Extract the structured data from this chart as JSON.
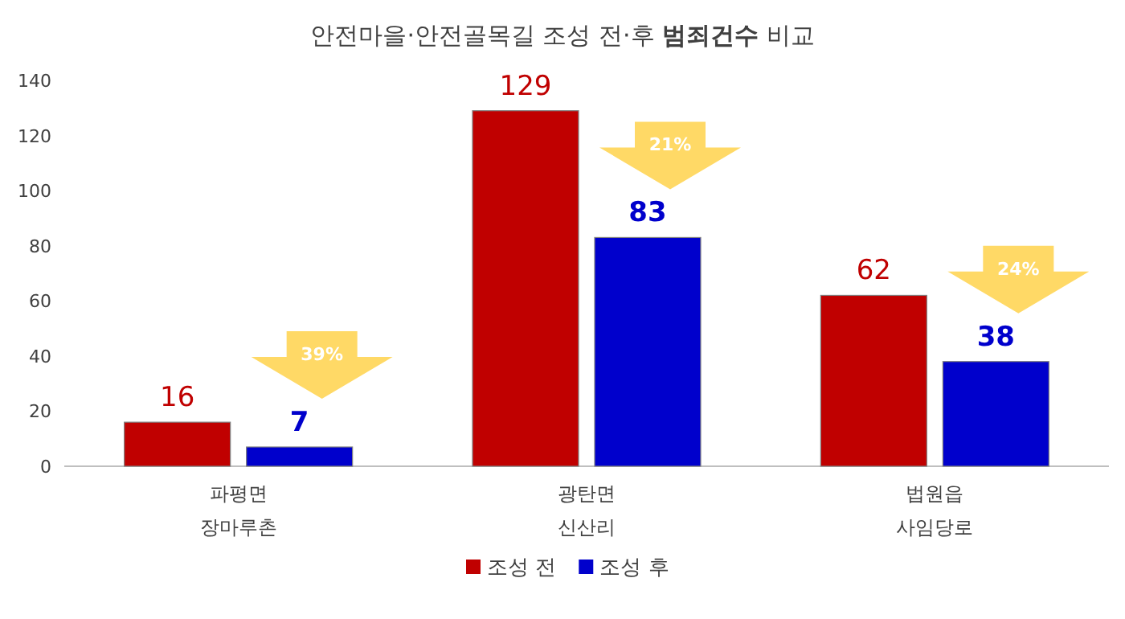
{
  "chart_data": {
    "type": "bar",
    "title": "안전마을·안전골목길 조성 전·후 **범죄건수** 비교",
    "categories": [
      "파평면\n장마루촌",
      "광탄면\n신산리",
      "법원읍\n사임당로"
    ],
    "series": [
      {
        "name": "조성 전",
        "color": "#c00000",
        "values": [
          16,
          129,
          62
        ]
      },
      {
        "name": "조성 후",
        "color": "#0000cc",
        "values": [
          7,
          83,
          38
        ]
      }
    ],
    "ylim": [
      0,
      140
    ],
    "yticks": [
      0,
      20,
      40,
      60,
      80,
      100,
      120,
      140
    ],
    "grid": false,
    "legend": "bottom",
    "data_labels": true,
    "annotations": [
      "39%",
      "21%",
      "24%"
    ]
  }
}
